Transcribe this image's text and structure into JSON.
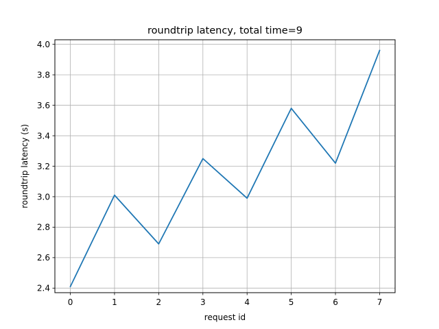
{
  "chart_data": {
    "type": "line",
    "title": "roundtrip latency, total time=9",
    "xlabel": "request id",
    "ylabel": "roundtrip latency (s)",
    "x": [
      0,
      1,
      2,
      3,
      4,
      5,
      6,
      7
    ],
    "xticks": [
      "0",
      "1",
      "2",
      "3",
      "4",
      "5",
      "6",
      "7"
    ],
    "yticks": [
      "2.4",
      "2.6",
      "2.8",
      "3.0",
      "3.2",
      "3.4",
      "3.6",
      "3.8",
      "4.0"
    ],
    "xlim": [
      -0.35,
      7.35
    ],
    "ylim": [
      2.37,
      4.03
    ],
    "grid": true,
    "series": [
      {
        "values": [
          2.41,
          3.01,
          2.69,
          3.25,
          2.99,
          3.58,
          3.22,
          3.96
        ],
        "color": "#1f77b4"
      }
    ]
  }
}
